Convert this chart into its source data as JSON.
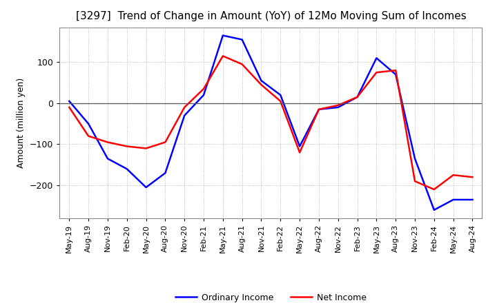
{
  "title": "[3297]  Trend of Change in Amount (YoY) of 12Mo Moving Sum of Incomes",
  "ylabel": "Amount (million yen)",
  "yticks": [
    100,
    0,
    -100,
    -200
  ],
  "ylim": [
    -280,
    185
  ],
  "background_color": "#ffffff",
  "grid_color": "#aaaaaa",
  "ordinary_income_color": "#0000ff",
  "net_income_color": "#ff0000",
  "x_labels": [
    "May-19",
    "Aug-19",
    "Nov-19",
    "Feb-20",
    "May-20",
    "Aug-20",
    "Nov-20",
    "Feb-21",
    "May-21",
    "Aug-21",
    "Nov-21",
    "Feb-22",
    "May-22",
    "Aug-22",
    "Nov-22",
    "Feb-23",
    "May-23",
    "Aug-23",
    "Nov-23",
    "Feb-24",
    "May-24",
    "Aug-24"
  ],
  "ordinary_income": [
    5,
    -50,
    -135,
    -160,
    -205,
    -170,
    -30,
    20,
    165,
    155,
    55,
    20,
    -105,
    -15,
    -10,
    15,
    110,
    70,
    -135,
    -260,
    -235,
    -235
  ],
  "net_income": [
    -10,
    -80,
    -95,
    -105,
    -110,
    -95,
    -10,
    35,
    115,
    95,
    45,
    5,
    -120,
    -15,
    -5,
    15,
    75,
    80,
    -190,
    -210,
    -175,
    -180
  ]
}
